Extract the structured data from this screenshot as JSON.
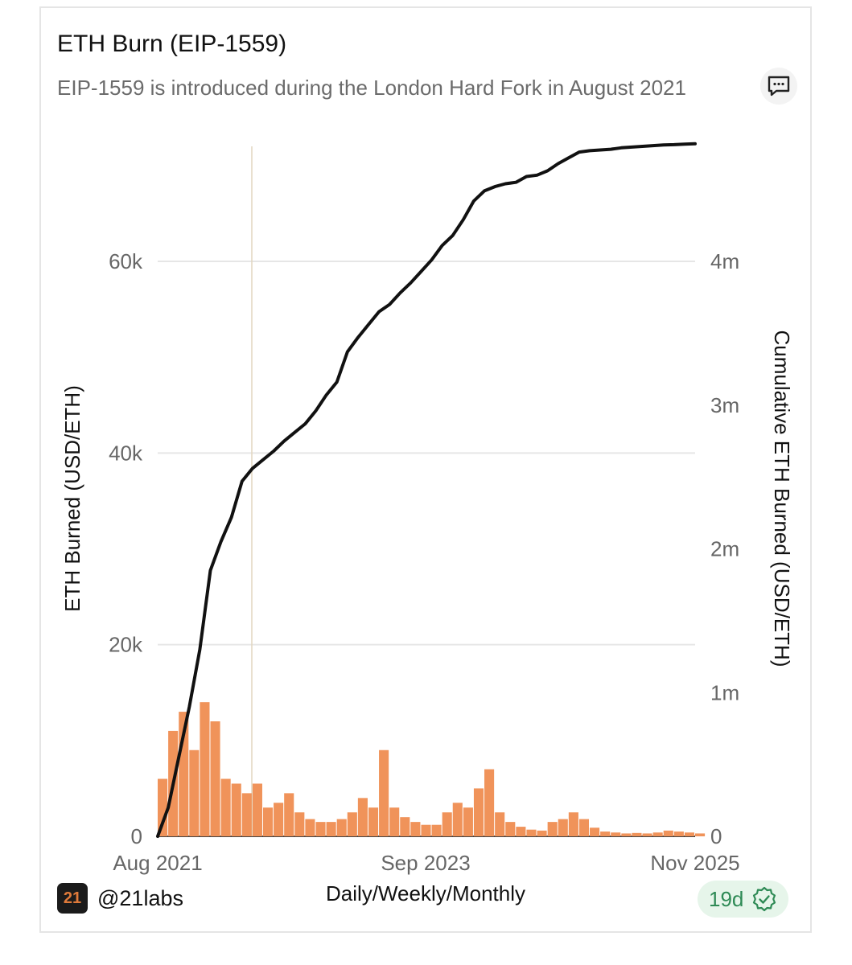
{
  "card": {
    "title": "ETH Burn (EIP-1559)",
    "subtitle": "EIP-1559 is introduced during the London Hard Fork in August 2021",
    "comment_icon": "comment-icon",
    "brand": {
      "logo_text": "21",
      "name": "@21labs"
    },
    "age_badge": {
      "label": "19d",
      "icon": "verified-check-icon"
    }
  },
  "colors": {
    "bars": "#F0935A",
    "line": "#111111",
    "grid": "#e6e6e6",
    "crosshair": "#e2d6bf",
    "axis_text": "#666666"
  },
  "chart_data": {
    "type": "bar",
    "xlabel": "Daily/Weekly/Monthly",
    "ylabel_left": "ETH Burned (USD/ETH)",
    "ylabel_right": "Cumulative ETH Burned (USD/ETH)",
    "x_range": [
      "2021-08",
      "2025-11"
    ],
    "x_ticks": [
      "Aug 2021",
      "Sep 2023",
      "Nov 2025"
    ],
    "y_left": {
      "range": [
        0,
        72000
      ],
      "ticks": [
        0,
        20000,
        40000,
        60000
      ],
      "tick_labels": [
        "0",
        "20k",
        "40k",
        "60k"
      ]
    },
    "y_right": {
      "range": [
        0,
        4800000
      ],
      "ticks": [
        0,
        1000000,
        2000000,
        3000000,
        4000000
      ],
      "tick_labels": [
        "0",
        "1m",
        "2m",
        "3m",
        "4m"
      ]
    },
    "grid": true,
    "series": [
      {
        "type": "bar",
        "axis": "left",
        "x": [
          "2021-08",
          "2021-09",
          "2021-10",
          "2021-11",
          "2021-12",
          "2022-01",
          "2022-02",
          "2022-03",
          "2022-04",
          "2022-05",
          "2022-06",
          "2022-07",
          "2022-08",
          "2022-09",
          "2022-10",
          "2022-11",
          "2022-12",
          "2023-01",
          "2023-02",
          "2023-03",
          "2023-04",
          "2023-05",
          "2023-06",
          "2023-07",
          "2023-08",
          "2023-09",
          "2023-10",
          "2023-11",
          "2023-12",
          "2024-01",
          "2024-02",
          "2024-03",
          "2024-04",
          "2024-05",
          "2024-06",
          "2024-07",
          "2024-08",
          "2024-09",
          "2024-10",
          "2024-11",
          "2024-12",
          "2025-01",
          "2025-02",
          "2025-03",
          "2025-04",
          "2025-05",
          "2025-06",
          "2025-07",
          "2025-08",
          "2025-09",
          "2025-10",
          "2025-11"
        ],
        "values": [
          6000,
          11000,
          13000,
          9000,
          14000,
          12000,
          6000,
          5500,
          4500,
          5500,
          3000,
          3500,
          4500,
          2500,
          1800,
          1500,
          1500,
          1800,
          2500,
          4000,
          3000,
          9000,
          3000,
          2000,
          1500,
          1200,
          1200,
          2500,
          3500,
          3000,
          5000,
          7000,
          2500,
          1500,
          1000,
          700,
          600,
          1500,
          1800,
          2500,
          1800,
          900,
          500,
          400,
          300,
          350,
          300,
          400,
          600,
          500,
          400,
          300
        ]
      },
      {
        "type": "line",
        "axis": "right",
        "x": [
          "2021-08",
          "2021-09",
          "2021-10",
          "2021-11",
          "2021-12",
          "2022-01",
          "2022-02",
          "2022-03",
          "2022-04",
          "2022-05",
          "2022-06",
          "2022-07",
          "2022-08",
          "2022-09",
          "2022-10",
          "2022-11",
          "2022-12",
          "2023-01",
          "2023-02",
          "2023-03",
          "2023-04",
          "2023-05",
          "2023-06",
          "2023-07",
          "2023-08",
          "2023-09",
          "2023-10",
          "2023-11",
          "2023-12",
          "2024-01",
          "2024-02",
          "2024-03",
          "2024-04",
          "2024-05",
          "2024-06",
          "2024-07",
          "2024-08",
          "2024-09",
          "2024-10",
          "2024-11",
          "2024-12",
          "2025-01",
          "2025-02",
          "2025-03",
          "2025-04",
          "2025-05",
          "2025-06",
          "2025-07",
          "2025-08",
          "2025-09",
          "2025-10",
          "2025-11"
        ],
        "values": [
          0,
          200000,
          550000,
          900000,
          1300000,
          1850000,
          2050000,
          2220000,
          2470000,
          2560000,
          2620000,
          2680000,
          2750000,
          2810000,
          2870000,
          2960000,
          3070000,
          3160000,
          3370000,
          3470000,
          3560000,
          3650000,
          3700000,
          3780000,
          3850000,
          3930000,
          4010000,
          4110000,
          4180000,
          4290000,
          4420000,
          4490000,
          4520000,
          4540000,
          4550000,
          4590000,
          4600000,
          4630000,
          4680000,
          4720000,
          4760000,
          4770000,
          4775000,
          4780000,
          4790000,
          4795000,
          4800000,
          4805000,
          4810000,
          4812000,
          4815000,
          4818000
        ]
      }
    ]
  }
}
